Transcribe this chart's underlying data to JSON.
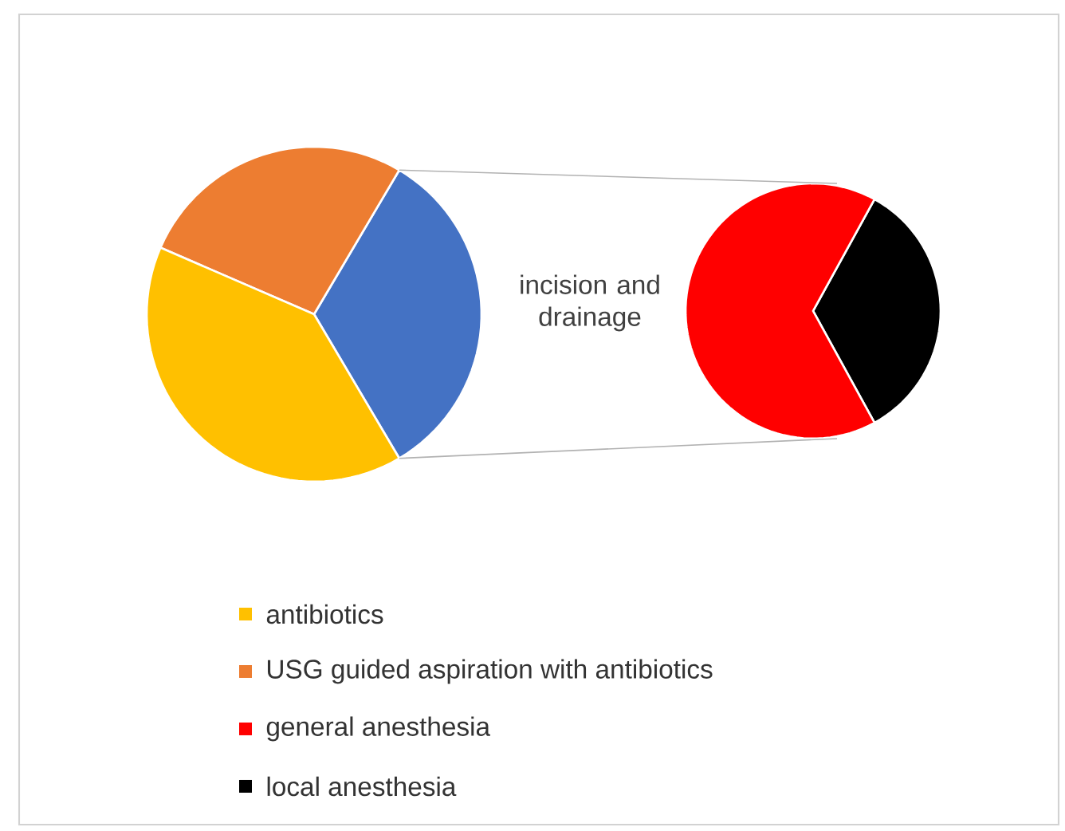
{
  "chart_data": [
    {
      "type": "pie",
      "categories": [
        "antibiotics",
        "USG guided aspiration with antibiotics",
        null
      ],
      "values": [
        40,
        27,
        33
      ],
      "colors": [
        "#ffc000",
        "#ed7d31",
        "#4472c4"
      ],
      "annotations": [
        "incision and drainage"
      ],
      "legend": "bottom"
    },
    {
      "type": "pie",
      "categories": [
        "general anesthesia",
        "local anesthesia"
      ],
      "values": [
        66,
        34
      ],
      "colors": [
        "#ff0000",
        "#000000"
      ],
      "legend": "bottom"
    }
  ]
}
